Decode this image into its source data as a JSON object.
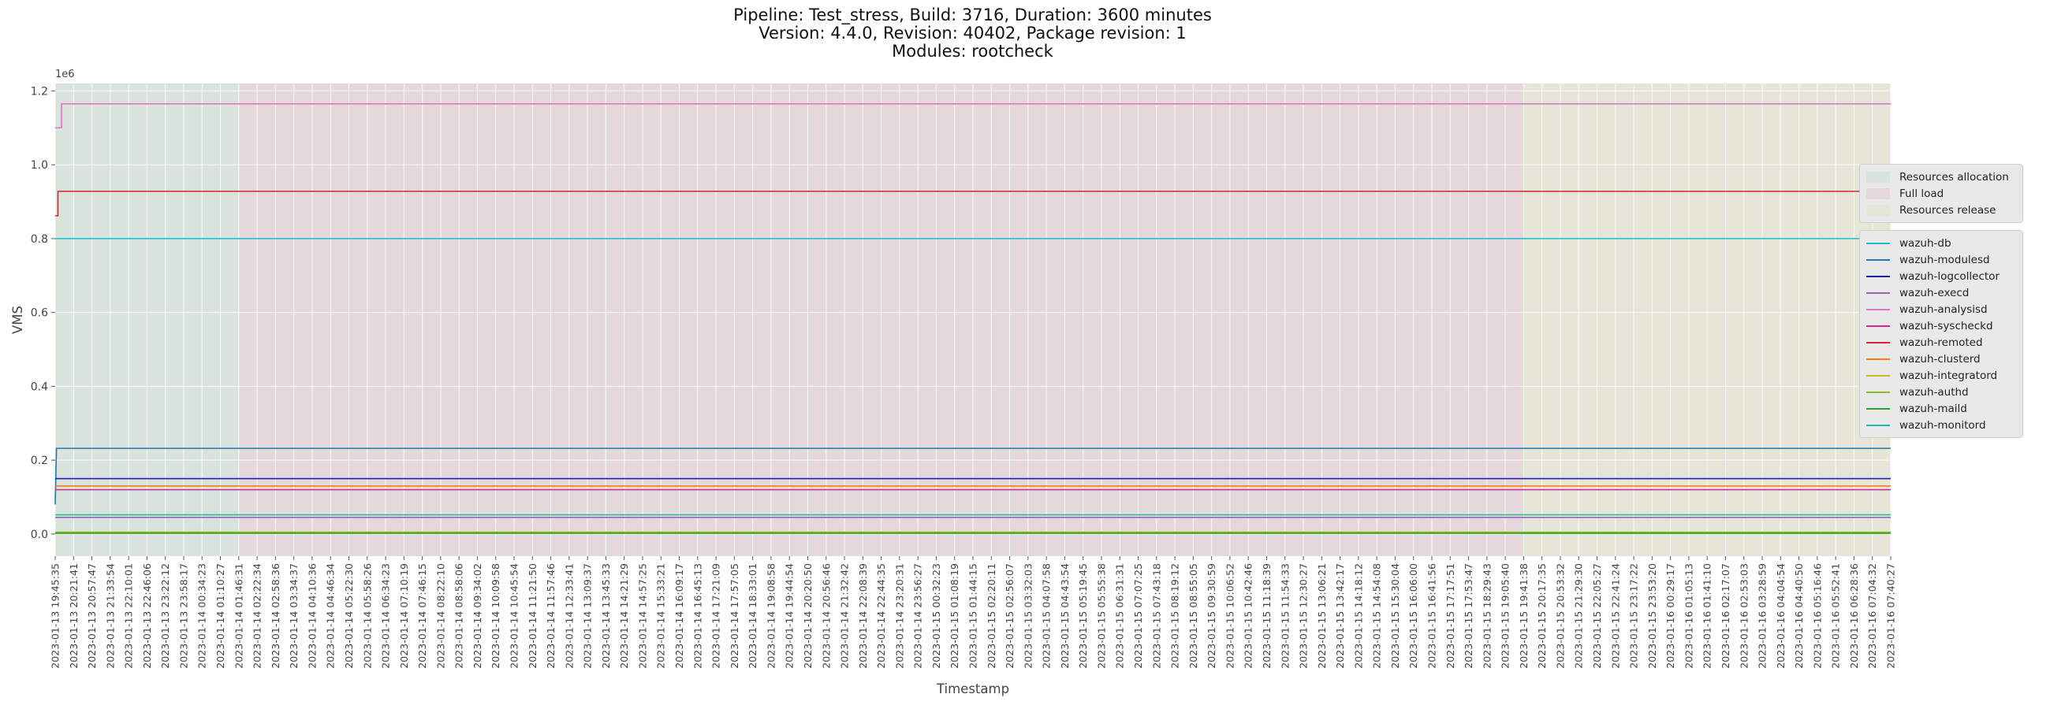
{
  "figure": {
    "title_lines": [
      "Pipeline: Test_stress, Build: 3716, Duration: 3600 minutes",
      "Version: 4.4.0, Revision: 40402, Package revision: 1",
      "Modules: rootcheck"
    ]
  },
  "chart_data": {
    "type": "line",
    "xlabel": "Timestamp",
    "ylabel": "VMS",
    "y_offset_text": "1e6",
    "ylim": [
      -60000,
      1220000
    ],
    "yticks": [
      0,
      200000,
      400000,
      600000,
      800000,
      1000000,
      1200000
    ],
    "ytick_labels": [
      "0.0",
      "0.2",
      "0.4",
      "0.6",
      "0.8",
      "1.0",
      "1.2"
    ],
    "grid": true,
    "legend_placement": "right",
    "x_start": "2023-01-13 19:45:35",
    "x_end": "2023-01-16 07:40:27",
    "x_tick_labels": [
      "2023-01-13 19:45:35",
      "2023-01-13 20:21:41",
      "2023-01-13 20:57:47",
      "2023-01-13 21:33:54",
      "2023-01-13 22:10:01",
      "2023-01-13 22:46:06",
      "2023-01-13 23:22:12",
      "2023-01-13 23:58:17",
      "2023-01-14 00:34:23",
      "2023-01-14 01:10:27",
      "2023-01-14 01:46:31",
      "2023-01-14 02:22:34",
      "2023-01-14 02:58:36",
      "2023-01-14 03:34:37",
      "2023-01-14 04:10:36",
      "2023-01-14 04:46:34",
      "2023-01-14 05:22:30",
      "2023-01-14 05:58:26",
      "2023-01-14 06:34:23",
      "2023-01-14 07:10:19",
      "2023-01-14 07:46:15",
      "2023-01-14 08:22:10",
      "2023-01-14 08:58:06",
      "2023-01-14 09:34:02",
      "2023-01-14 10:09:58",
      "2023-01-14 10:45:54",
      "2023-01-14 11:21:50",
      "2023-01-14 11:57:46",
      "2023-01-14 12:33:41",
      "2023-01-14 13:09:37",
      "2023-01-14 13:45:33",
      "2023-01-14 14:21:29",
      "2023-01-14 14:57:25",
      "2023-01-14 15:33:21",
      "2023-01-14 16:09:17",
      "2023-01-14 16:45:13",
      "2023-01-14 17:21:09",
      "2023-01-14 17:57:05",
      "2023-01-14 18:33:01",
      "2023-01-14 19:08:58",
      "2023-01-14 19:44:54",
      "2023-01-14 20:20:50",
      "2023-01-14 20:56:46",
      "2023-01-14 21:32:42",
      "2023-01-14 22:08:39",
      "2023-01-14 22:44:35",
      "2023-01-14 23:20:31",
      "2023-01-14 23:56:27",
      "2023-01-15 00:32:23",
      "2023-01-15 01:08:19",
      "2023-01-15 01:44:15",
      "2023-01-15 02:20:11",
      "2023-01-15 02:56:07",
      "2023-01-15 03:32:03",
      "2023-01-15 04:07:58",
      "2023-01-15 04:43:54",
      "2023-01-15 05:19:45",
      "2023-01-15 05:55:38",
      "2023-01-15 06:31:31",
      "2023-01-15 07:07:25",
      "2023-01-15 07:43:18",
      "2023-01-15 08:19:12",
      "2023-01-15 08:55:05",
      "2023-01-15 09:30:59",
      "2023-01-15 10:06:52",
      "2023-01-15 10:42:46",
      "2023-01-15 11:18:39",
      "2023-01-15 11:54:33",
      "2023-01-15 12:30:27",
      "2023-01-15 13:06:21",
      "2023-01-15 13:42:17",
      "2023-01-15 14:18:12",
      "2023-01-15 14:54:08",
      "2023-01-15 15:30:04",
      "2023-01-15 16:06:00",
      "2023-01-15 16:41:56",
      "2023-01-15 17:17:51",
      "2023-01-15 17:53:47",
      "2023-01-15 18:29:43",
      "2023-01-15 19:05:40",
      "2023-01-15 19:41:38",
      "2023-01-15 20:17:35",
      "2023-01-15 20:53:32",
      "2023-01-15 21:29:30",
      "2023-01-15 22:05:27",
      "2023-01-15 22:41:24",
      "2023-01-15 23:17:22",
      "2023-01-15 23:53:20",
      "2023-01-16 00:29:17",
      "2023-01-16 01:05:13",
      "2023-01-16 01:41:10",
      "2023-01-16 02:17:07",
      "2023-01-16 02:53:03",
      "2023-01-16 03:28:59",
      "2023-01-16 04:04:54",
      "2023-01-16 04:40:50",
      "2023-01-16 05:16:46",
      "2023-01-16 05:52:41",
      "2023-01-16 06:28:36",
      "2023-01-16 07:04:32",
      "2023-01-16 07:40:27"
    ],
    "phases": [
      {
        "name": "Resources allocation",
        "start": "2023-01-13 19:45:35",
        "end": "2023-01-14 01:46:31",
        "color": "#d9e3dc"
      },
      {
        "name": "Full load",
        "start": "2023-01-14 01:46:31",
        "end": "2023-01-15 19:41:38",
        "color": "#e5d8db"
      },
      {
        "name": "Resources release",
        "start": "2023-01-15 19:41:38",
        "end": "2023-01-16 07:40:27",
        "color": "#e6e6d8"
      }
    ],
    "series": [
      {
        "name": "wazuh-db",
        "color": "#17becf",
        "points": [
          [
            "2023-01-13 19:45:35",
            800000
          ],
          [
            "2023-01-16 07:40:27",
            800000
          ]
        ]
      },
      {
        "name": "wazuh-modulesd",
        "color": "#1f77b4",
        "points": [
          [
            "2023-01-13 19:45:35",
            80000
          ],
          [
            "2023-01-13 19:48:00",
            232000
          ],
          [
            "2023-01-16 07:40:27",
            232000
          ]
        ]
      },
      {
        "name": "wazuh-logcollector",
        "color": "#1f1fa8",
        "points": [
          [
            "2023-01-13 19:45:35",
            150000
          ],
          [
            "2023-01-16 07:40:27",
            150000
          ]
        ]
      },
      {
        "name": "wazuh-execd",
        "color": "#9467bd",
        "points": [
          [
            "2023-01-13 19:45:35",
            45000
          ],
          [
            "2023-01-16 07:40:27",
            45000
          ]
        ]
      },
      {
        "name": "wazuh-analysisd",
        "color": "#e377c2",
        "points": [
          [
            "2023-01-13 19:45:35",
            1100000
          ],
          [
            "2023-01-13 19:58:00",
            1100000
          ],
          [
            "2023-01-13 19:58:00",
            1165000
          ],
          [
            "2023-01-16 07:40:27",
            1165000
          ]
        ]
      },
      {
        "name": "wazuh-syscheckd",
        "color": "#d62790",
        "points": [
          [
            "2023-01-13 19:45:35",
            120000
          ],
          [
            "2023-01-16 07:40:27",
            120000
          ]
        ]
      },
      {
        "name": "wazuh-remoted",
        "color": "#d62728",
        "points": [
          [
            "2023-01-13 19:45:35",
            862000
          ],
          [
            "2023-01-13 19:51:00",
            862000
          ],
          [
            "2023-01-13 19:51:00",
            928000
          ],
          [
            "2023-01-16 07:40:27",
            928000
          ]
        ]
      },
      {
        "name": "wazuh-clusterd",
        "color": "#ff7f0e",
        "points": [
          [
            "2023-01-13 19:45:35",
            130000
          ],
          [
            "2023-01-16 07:40:27",
            130000
          ]
        ]
      },
      {
        "name": "wazuh-integratord",
        "color": "#bcbd22",
        "points": [
          [
            "2023-01-13 19:45:35",
            3000
          ],
          [
            "2023-01-16 07:40:27",
            3000
          ]
        ]
      },
      {
        "name": "wazuh-authd",
        "color": "#8fbc1f",
        "points": [
          [
            "2023-01-13 19:45:35",
            5000
          ],
          [
            "2023-01-16 07:40:27",
            5000
          ]
        ]
      },
      {
        "name": "wazuh-maild",
        "color": "#2ca02c",
        "points": [
          [
            "2023-01-13 19:45:35",
            2000
          ],
          [
            "2023-01-16 07:40:27",
            2000
          ]
        ]
      },
      {
        "name": "wazuh-monitord",
        "color": "#1abc9c",
        "points": [
          [
            "2023-01-13 19:45:35",
            52000
          ],
          [
            "2023-01-16 07:40:27",
            52000
          ]
        ]
      }
    ]
  }
}
